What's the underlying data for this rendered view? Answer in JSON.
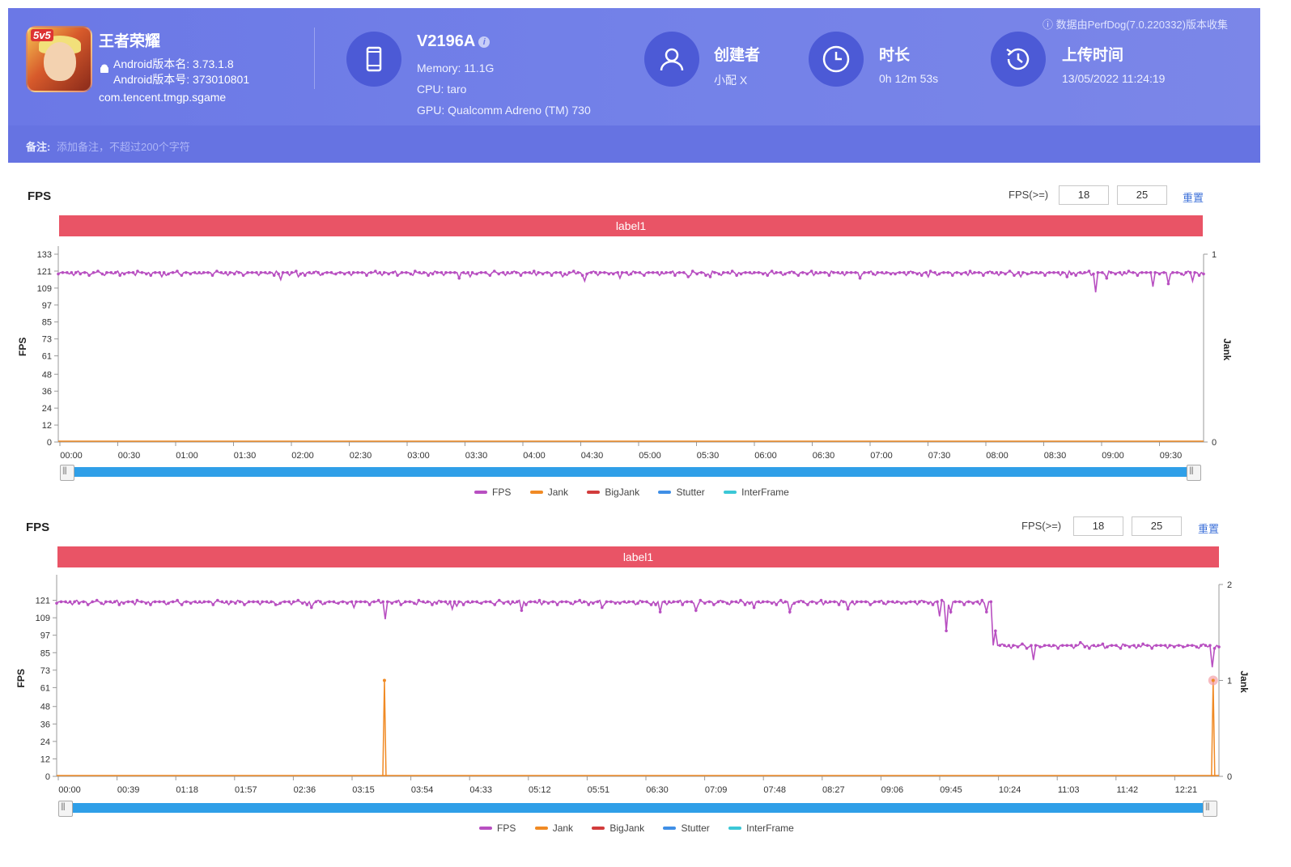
{
  "header": {
    "source_info": "ⓘ 数据由PerfDog(7.0.220332)版本收集",
    "app_name": "王者荣耀",
    "version_name": "Android版本名: 3.73.1.8",
    "version_code": "Android版本号: 373010801",
    "package": "com.tencent.tmgp.sgame",
    "device": "V2196A",
    "memory": "Memory: 11.1G",
    "cpu": "CPU: taro",
    "gpu": "GPU: Qualcomm Adreno (TM) 730",
    "creator_label": "创建者",
    "creator_value": "小配 X",
    "duration_label": "时长",
    "duration_value": "0h 12m 53s",
    "upload_label": "上传时间",
    "upload_value": "13/05/2022 11:24:19",
    "note_label": "备注:",
    "note_placeholder": "添加备注，不超过200个字符"
  },
  "panel1": {
    "title": "FPS",
    "fps_ctl_label": "FPS(>=)",
    "fps_low": "18",
    "fps_high": "25",
    "reset_label": "重置",
    "label_bar": "label1"
  },
  "panel2": {
    "title": "FPS",
    "fps_ctl_label": "FPS(>=)",
    "fps_low": "18",
    "fps_high": "25",
    "reset_label": "重置",
    "label_bar": "label1"
  },
  "legend": [
    "FPS",
    "Jank",
    "BigJank",
    "Stutter",
    "InterFrame"
  ],
  "colors": {
    "fps": "#b84fc1",
    "jank": "#f08a24",
    "bigjank": "#d23c3c",
    "stutter": "#3f8fe6",
    "interframe": "#3bc7d6",
    "label_bar": "#e95466"
  },
  "chart_data": [
    {
      "type": "line",
      "ylabel": "FPS",
      "y2label": "Jank",
      "yticks": [
        0,
        12,
        24,
        36,
        48,
        61,
        73,
        85,
        97,
        109,
        121,
        133
      ],
      "y2ticks": [
        0,
        1
      ],
      "ylim": [
        0,
        133
      ],
      "y2lim": [
        0,
        1
      ],
      "xticks": [
        "00:00",
        "00:30",
        "01:00",
        "01:30",
        "02:00",
        "02:30",
        "03:00",
        "03:30",
        "04:00",
        "04:30",
        "05:00",
        "05:30",
        "06:00",
        "06:30",
        "07:00",
        "07:30",
        "08:00",
        "08:30",
        "09:00",
        "09:30"
      ],
      "series": [
        {
          "name": "FPS",
          "baseline": 120,
          "dips": [
            [
              0.02,
              119
            ],
            [
              0.09,
              117
            ],
            [
              0.195,
              115
            ],
            [
              0.21,
              117
            ],
            [
              0.35,
              116
            ],
            [
              0.36,
              117
            ],
            [
              0.44,
              117
            ],
            [
              0.46,
              114
            ],
            [
              0.49,
              116
            ],
            [
              0.55,
              117
            ],
            [
              0.57,
              117
            ],
            [
              0.7,
              116
            ],
            [
              0.76,
              117
            ],
            [
              0.84,
              117
            ],
            [
              0.88,
              117
            ],
            [
              0.905,
              106
            ],
            [
              0.915,
              116
            ],
            [
              0.955,
              110
            ],
            [
              0.97,
              112
            ],
            [
              0.99,
              114
            ]
          ]
        },
        {
          "name": "Jank",
          "values": []
        }
      ]
    },
    {
      "type": "line",
      "ylabel": "FPS",
      "y2label": "Jank",
      "yticks": [
        0,
        12,
        24,
        36,
        48,
        61,
        73,
        85,
        97,
        109,
        121
      ],
      "y2ticks": [
        0,
        1,
        2
      ],
      "ylim": [
        0,
        133
      ],
      "y2lim": [
        0,
        2
      ],
      "xticks": [
        "00:00",
        "00:39",
        "01:18",
        "01:57",
        "02:36",
        "03:15",
        "03:54",
        "04:33",
        "05:12",
        "05:51",
        "06:30",
        "07:09",
        "07:48",
        "08:27",
        "09:06",
        "09:45",
        "10:24",
        "11:03",
        "11:42",
        "12:21"
      ],
      "series": [
        {
          "name": "FPS",
          "segments": [
            {
              "from": 0.0,
              "to": 0.805,
              "baseline": 120
            },
            {
              "from": 0.805,
              "to": 1.0,
              "baseline": 90
            }
          ],
          "dips": [
            [
              0.19,
              118
            ],
            [
              0.22,
              116
            ],
            [
              0.255,
              116
            ],
            [
              0.282,
              108
            ],
            [
              0.34,
              115
            ],
            [
              0.345,
              117
            ],
            [
              0.4,
              114
            ],
            [
              0.47,
              116
            ],
            [
              0.515,
              118
            ],
            [
              0.52,
              113
            ],
            [
              0.55,
              114
            ],
            [
              0.6,
              116
            ],
            [
              0.63,
              113
            ],
            [
              0.68,
              115
            ],
            [
              0.76,
              110
            ],
            [
              0.765,
              100
            ],
            [
              0.77,
              113
            ],
            [
              0.8,
              113
            ],
            [
              0.808,
              100
            ],
            [
              0.84,
              80
            ],
            [
              0.88,
              92
            ],
            [
              0.995,
              75
            ]
          ]
        },
        {
          "name": "Jank",
          "spikes": [
            [
              0.282,
              1
            ],
            [
              0.995,
              1
            ]
          ]
        }
      ]
    }
  ]
}
